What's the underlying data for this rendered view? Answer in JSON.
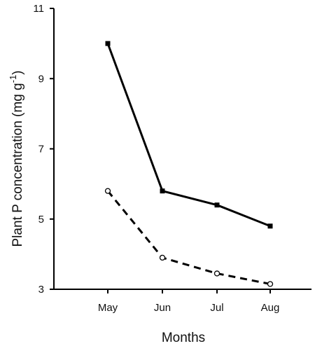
{
  "chart_data": {
    "type": "line",
    "title": "",
    "categories": [
      "May",
      "Jun",
      "Jul",
      "Aug"
    ],
    "xlabel": "Months",
    "ylabel": {
      "main": "Plant P concentration (mg g",
      "superscript": "-1",
      "close": ")"
    },
    "ylim": [
      3,
      11
    ],
    "yticks": [
      "3",
      "5",
      "7",
      "9",
      "11"
    ],
    "grid": false,
    "legend": "none",
    "series": [
      {
        "values": [
          10.0,
          5.8,
          5.4,
          4.8
        ],
        "line_style": "solid",
        "marker": "filled-square",
        "color": "#000000"
      },
      {
        "values": [
          5.8,
          3.9,
          3.45,
          3.15
        ],
        "line_style": "dashed",
        "marker": "open-circle",
        "color": "#000000"
      }
    ]
  }
}
